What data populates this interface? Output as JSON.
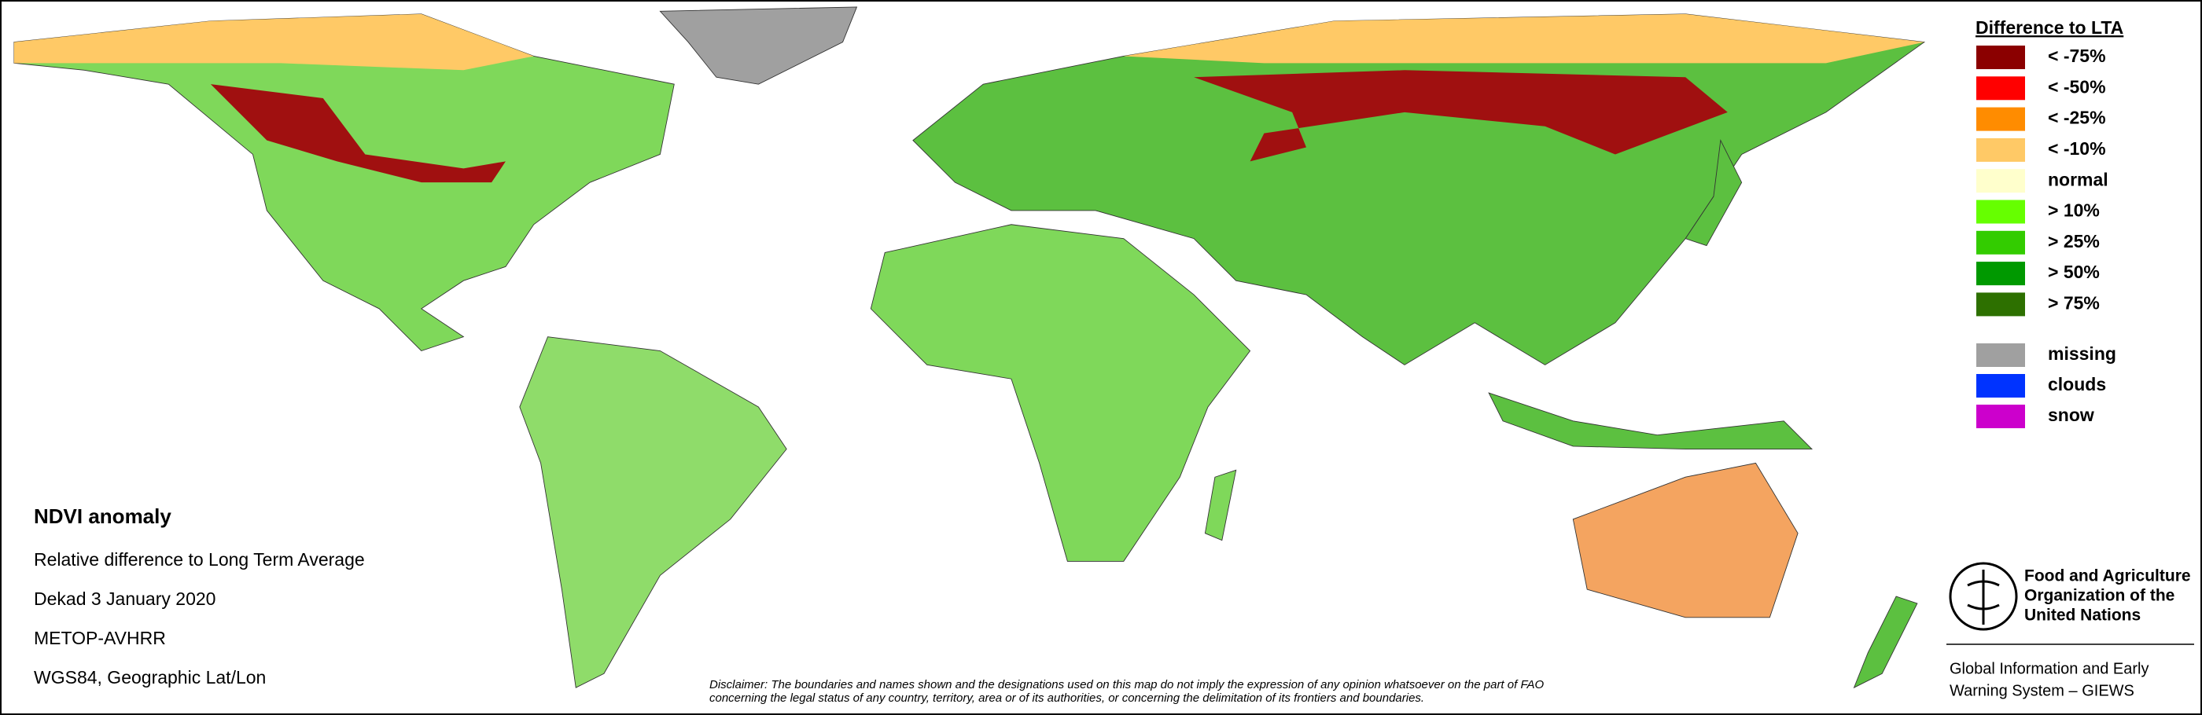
{
  "legend": {
    "title": "Difference to LTA",
    "items": [
      {
        "label": "< -75%",
        "color": "#8b0000"
      },
      {
        "label": "< -50%",
        "color": "#ff0000"
      },
      {
        "label": "< -25%",
        "color": "#ff8c00"
      },
      {
        "label": "< -10%",
        "color": "#ffc966"
      },
      {
        "label": "normal",
        "color": "#ffffcc"
      },
      {
        "label": "> 10%",
        "color": "#66ff00"
      },
      {
        "label": "> 25%",
        "color": "#33cc00"
      },
      {
        "label": "> 50%",
        "color": "#009900"
      },
      {
        "label": "> 75%",
        "color": "#2d7000"
      }
    ],
    "other_items": [
      {
        "label": "missing",
        "color": "#a0a0a0"
      },
      {
        "label": "clouds",
        "color": "#0033ff"
      },
      {
        "label": "snow",
        "color": "#cc00cc"
      }
    ]
  },
  "info": {
    "title": "NDVI anomaly",
    "lines": [
      "Relative difference to Long Term Average",
      "Dekad 3 January 2020",
      "METOP-AVHRR",
      "WGS84, Geographic Lat/Lon"
    ]
  },
  "organization": {
    "name_lines": [
      "Food and Agriculture",
      "Organization of the",
      "United Nations"
    ],
    "system_lines": [
      "Global Information and Early",
      "Warning System – GIEWS"
    ]
  },
  "disclaimer": {
    "lines": [
      "Disclaimer: The boundaries and names shown and the designations used on this map do not imply the expression of any opinion whatsoever on the part of FAO",
      "concerning the legal status of any country, territory, area or of its authorities, or concerning the delimitation of its frontiers and boundaries."
    ]
  }
}
